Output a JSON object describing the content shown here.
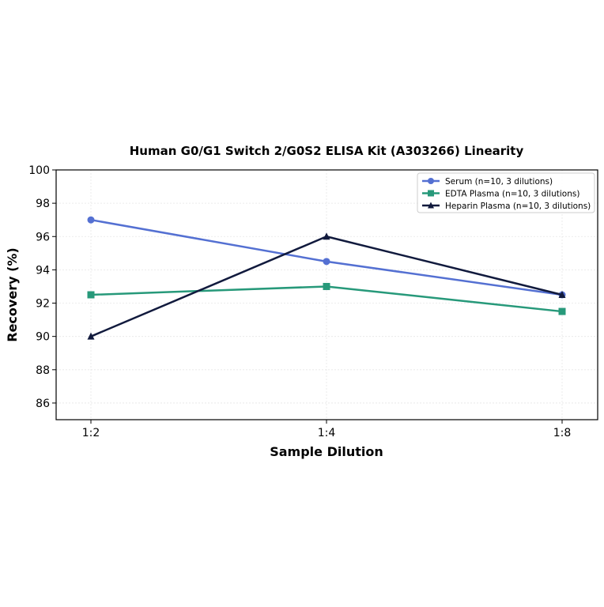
{
  "chart_data": {
    "type": "line",
    "title": "Human G0/G1 Switch 2/G0S2 ELISA Kit (A303266) Linearity",
    "xlabel": "Sample Dilution",
    "ylabel": "Recovery (%)",
    "categories": [
      "1:2",
      "1:4",
      "1:8"
    ],
    "ylim": [
      85,
      100
    ],
    "yticks": [
      86,
      88,
      90,
      92,
      94,
      96,
      98,
      100
    ],
    "grid": true,
    "legend_position": "top-right",
    "series": [
      {
        "name": "Serum (n=10, 3 dilutions)",
        "values": [
          97.0,
          94.5,
          92.5
        ],
        "color": "#5470d2",
        "marker": "circle"
      },
      {
        "name": "EDTA Plasma (n=10, 3 dilutions)",
        "values": [
          92.5,
          93.0,
          91.5
        ],
        "color": "#27997a",
        "marker": "square"
      },
      {
        "name": "Heparin Plasma (n=10, 3 dilutions)",
        "values": [
          90.0,
          96.0,
          92.5
        ],
        "color": "#111a3d",
        "marker": "triangle"
      }
    ]
  }
}
